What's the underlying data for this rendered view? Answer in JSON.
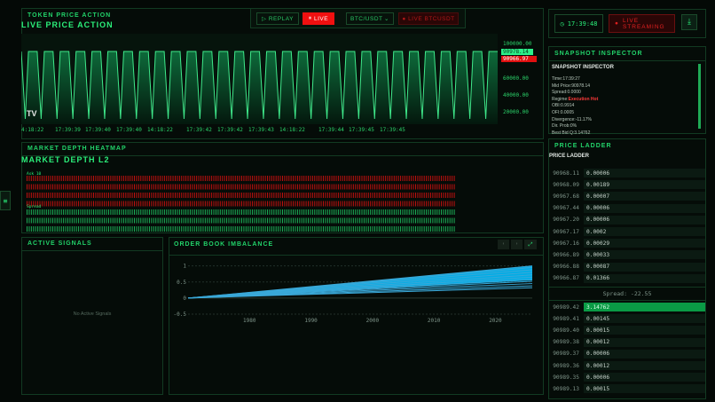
{
  "price_panel": {
    "title": "TOKEN PRICE ACTION",
    "subtitle": "LIVE PRICE ACTION",
    "replay_label": "REPLAY",
    "live_label": "LIVE",
    "pair": "BTC/USDT",
    "live_pair_label": "LIVE BTCUSDT",
    "y_labels": [
      "100000.00",
      "60000.00",
      "40000.00",
      "20000.00"
    ],
    "bid_tag": "90978.14",
    "ask_tag": "90966.97",
    "time_labels": [
      "4:18:22",
      "17:39:39",
      "17:39:40",
      "17:39:40",
      "14:18:22",
      "17:39:42",
      "17:39:42",
      "17:39:43",
      "14:18:22",
      "17:39:44",
      "17:39:45",
      "17:39:45"
    ],
    "logo": "TV"
  },
  "status": {
    "clock": "17:39:48",
    "streaming": "LIVE STREAMING"
  },
  "snapshot": {
    "panel_title": "SNAPSHOT INSPECTOR",
    "heading": "SNAPSHOT INSPECTOR",
    "lines": [
      {
        "k": "Time:",
        "v": "17:39:27"
      },
      {
        "k": "Mid Price:",
        "v": "90978.14"
      },
      {
        "k": "Spread:",
        "v": "0.0000"
      },
      {
        "k": "Regime:",
        "v": "Execution Hot",
        "hot": true
      },
      {
        "k": "OBI:",
        "v": "0.9914"
      },
      {
        "k": "OFI:",
        "v": "0.0005"
      },
      {
        "k": "Divergence:",
        "v": "-11.17%"
      },
      {
        "k": "Dir. Prob:",
        "v": "0%"
      },
      {
        "k": "Best Bid Q:",
        "v": "3.14762"
      }
    ]
  },
  "heatmap": {
    "title": "MARKET DEPTH HEATMAP",
    "subtitle": "MARKET DEPTH L2",
    "ask_label": "Ask 10",
    "spread_label": "Spread"
  },
  "signals": {
    "title": "ACTIVE SIGNALS",
    "empty": "No Active Signals"
  },
  "orderbook": {
    "title": "ORDER BOOK IMBALANCE",
    "line_color": "#00bfff",
    "chart_data": {
      "type": "line",
      "x_ticks": [
        1980,
        1990,
        2000,
        2010,
        2020
      ],
      "y_ticks": [
        1,
        0.5,
        0,
        -0.5
      ],
      "xlim": [
        1970,
        2026
      ],
      "ylim": [
        -0.5,
        1.1
      ],
      "start": {
        "x": 1970,
        "y": 0
      },
      "end_x": 2026,
      "end_values": [
        1.0,
        0.95,
        0.88,
        0.8,
        0.72,
        0.65,
        0.58,
        0.52,
        0.45,
        0.38,
        0.32
      ]
    }
  },
  "ladder": {
    "panel_title": "PRICE LADDER",
    "heading": "PRICE LADDER",
    "spread": "Spread: -22.55",
    "asks": [
      [
        "90968.11",
        "0.00006"
      ],
      [
        "90968.09",
        "0.00189"
      ],
      [
        "90967.68",
        "0.00007"
      ],
      [
        "90967.44",
        "0.00006"
      ],
      [
        "90967.20",
        "0.00006"
      ],
      [
        "90967.17",
        "0.0002"
      ],
      [
        "90967.16",
        "0.00029"
      ],
      [
        "90966.89",
        "0.00033"
      ],
      [
        "90966.88",
        "0.00087"
      ],
      [
        "90966.87",
        "0.01366"
      ]
    ],
    "bids": [
      [
        "90989.42",
        "3.14762"
      ],
      [
        "90989.41",
        "0.00145"
      ],
      [
        "90989.40",
        "0.00015"
      ],
      [
        "90989.38",
        "0.00012"
      ],
      [
        "90989.37",
        "0.00006"
      ],
      [
        "90989.36",
        "0.00012"
      ],
      [
        "90989.35",
        "0.00006"
      ],
      [
        "90989.13",
        "0.00015"
      ]
    ]
  },
  "colors": {
    "accent": "#22d36a",
    "ask": "#e01010",
    "bid": "#0a9a45"
  }
}
